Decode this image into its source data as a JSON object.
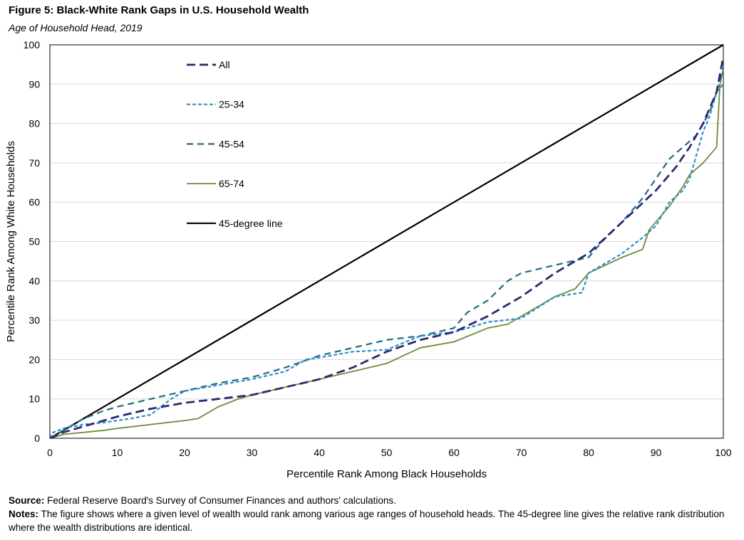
{
  "figure": {
    "title": "Figure 5: Black-White Rank Gaps in U.S. Household Wealth",
    "subtitle": "Age of Household Head, 2019",
    "source_label": "Source:",
    "source_text": " Federal Reserve Board's Survey of Consumer Finances and authors' calculations.",
    "notes_label": "Notes:",
    "notes_text": " The figure shows where a given level of wealth would rank among various age ranges of household heads. The 45-degree line gives the relative rank distribution where the wealth distributions are identical."
  },
  "colors": {
    "all": "#2b2a6e",
    "age_25_34": "#2e8fc9",
    "age_45_54": "#1f6a80",
    "age_65_74": "#6e8a3a",
    "line_45": "#000000",
    "grid": "#d9d9d9"
  },
  "chart_data": {
    "type": "line",
    "title": "Figure 5: Black-White Rank Gaps in U.S. Household Wealth",
    "subtitle": "Age of Household Head, 2019",
    "xlabel": "Percentile Rank Among Black Households",
    "ylabel": "Percentile Rank Among White Households",
    "xlim": [
      0,
      100
    ],
    "ylim": [
      0,
      100
    ],
    "xticks": [
      0,
      10,
      20,
      30,
      40,
      50,
      60,
      70,
      80,
      90,
      100
    ],
    "yticks": [
      0,
      10,
      20,
      30,
      40,
      50,
      60,
      70,
      80,
      90,
      100
    ],
    "grid": "horizontal",
    "legend": "upper-left-inside",
    "series": [
      {
        "name": "All",
        "style": "long-dash",
        "color": "#2b2a6e",
        "x": [
          0,
          2,
          5,
          8,
          10,
          15,
          20,
          25,
          30,
          35,
          40,
          45,
          50,
          55,
          60,
          65,
          70,
          75,
          80,
          85,
          90,
          93,
          95,
          97,
          98,
          99,
          100
        ],
        "y": [
          0,
          1.5,
          3,
          4.5,
          5.5,
          7.5,
          9,
          10,
          11,
          13,
          15,
          18,
          22,
          25,
          27,
          31,
          36,
          42,
          47,
          55,
          63,
          69,
          74,
          80,
          84,
          88,
          97
        ]
      },
      {
        "name": "25-34",
        "style": "short-dash",
        "color": "#2e8fc9",
        "x": [
          0,
          0.5,
          2,
          5,
          8,
          12,
          15,
          18,
          20,
          25,
          30,
          35,
          38,
          40,
          45,
          50,
          55,
          60,
          65,
          70,
          75,
          79,
          80,
          85,
          88,
          90,
          92,
          94,
          95,
          96,
          97,
          98,
          99,
          100
        ],
        "y": [
          0,
          1.5,
          2.5,
          3.5,
          4,
          5,
          6,
          10,
          12,
          13.5,
          15,
          17,
          20,
          20.5,
          22,
          22.5,
          26,
          27,
          29.5,
          30.5,
          36,
          37,
          42,
          47,
          51,
          54,
          60,
          63,
          66,
          72,
          78,
          82,
          88,
          90
        ]
      },
      {
        "name": "45-54",
        "style": "medium-dash",
        "color": "#1f6a80",
        "x": [
          0,
          2,
          5,
          8,
          10,
          15,
          20,
          25,
          30,
          35,
          40,
          45,
          50,
          55,
          60,
          62,
          65,
          68,
          70,
          75,
          80,
          82,
          85,
          88,
          90,
          92,
          94,
          96,
          98,
          99,
          100
        ],
        "y": [
          0,
          2,
          5,
          7,
          8,
          10,
          12,
          14,
          15.5,
          18,
          21,
          23,
          25,
          26,
          28,
          32,
          35,
          40,
          42,
          44,
          46,
          50,
          55,
          61,
          66,
          71,
          74,
          77,
          83,
          88,
          94
        ]
      },
      {
        "name": "65-74",
        "style": "solid",
        "color": "#6e8a3a",
        "x": [
          0,
          2,
          5,
          8,
          10,
          15,
          20,
          22,
          25,
          28,
          30,
          35,
          40,
          45,
          50,
          55,
          60,
          65,
          68,
          70,
          75,
          78,
          80,
          85,
          88,
          89,
          90,
          92,
          94,
          95,
          97,
          98,
          99,
          99.5,
          100
        ],
        "y": [
          0,
          1,
          1.5,
          2,
          2.5,
          3.5,
          4.5,
          5,
          8,
          10,
          11,
          13,
          15,
          17,
          19,
          23,
          24.5,
          28,
          29,
          31,
          36,
          38,
          42,
          46,
          48,
          53,
          55,
          59,
          64,
          67,
          70,
          72,
          74,
          90,
          94
        ]
      },
      {
        "name": "45-degree line",
        "style": "solid-thick",
        "color": "#000000",
        "x": [
          0,
          100
        ],
        "y": [
          0,
          100
        ]
      }
    ]
  }
}
